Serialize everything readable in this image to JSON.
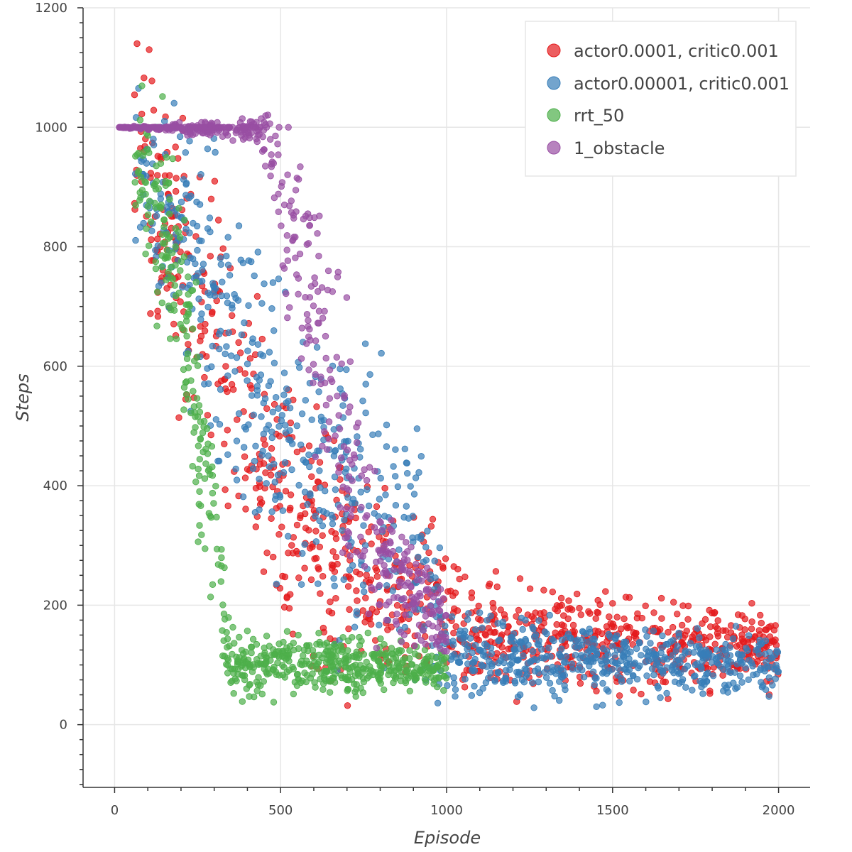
{
  "chart_data": {
    "type": "scatter",
    "xlabel": "Episode",
    "ylabel": "Steps",
    "xlim": [
      -95,
      2095
    ],
    "ylim": [
      -105,
      1200
    ],
    "x_ticks": [
      0,
      500,
      1000,
      1500,
      2000
    ],
    "x_tick_labels": [
      "0",
      "500",
      "1000",
      "1500",
      "2000"
    ],
    "y_ticks": [
      0,
      200,
      400,
      600,
      800,
      1000,
      1200
    ],
    "y_tick_labels": [
      "0",
      "200",
      "400",
      "600",
      "800",
      "1000",
      "1200"
    ],
    "grid": true,
    "legend_position": "top-right",
    "series": [
      {
        "name": "actor0.0001, critic0.001",
        "color": "#e41a1c",
        "trend": [
          [
            60,
            1000
          ],
          [
            120,
            900
          ],
          [
            200,
            780
          ],
          [
            300,
            650
          ],
          [
            400,
            500
          ],
          [
            500,
            380
          ],
          [
            600,
            320
          ],
          [
            700,
            260
          ],
          [
            800,
            220
          ],
          [
            900,
            210
          ],
          [
            1000,
            190
          ],
          [
            1100,
            150
          ],
          [
            1300,
            140
          ],
          [
            1500,
            135
          ],
          [
            1700,
            130
          ],
          [
            2000,
            125
          ]
        ],
        "spread": [
          [
            60,
            150
          ],
          [
            300,
            200
          ],
          [
            600,
            180
          ],
          [
            900,
            120
          ],
          [
            1100,
            70
          ],
          [
            2000,
            55
          ]
        ],
        "n": 1000,
        "seed": 11
      },
      {
        "name": "actor0.00001, critic0.001",
        "color": "#377eb8",
        "trend": [
          [
            60,
            950
          ],
          [
            200,
            850
          ],
          [
            300,
            700
          ],
          [
            400,
            600
          ],
          [
            500,
            500
          ],
          [
            600,
            450
          ],
          [
            700,
            400
          ],
          [
            800,
            350
          ],
          [
            900,
            300
          ],
          [
            1000,
            130
          ],
          [
            1100,
            115
          ],
          [
            1300,
            110
          ],
          [
            1500,
            108
          ],
          [
            1700,
            105
          ],
          [
            2000,
            100
          ]
        ],
        "spread": [
          [
            60,
            150
          ],
          [
            400,
            220
          ],
          [
            800,
            220
          ],
          [
            950,
            150
          ],
          [
            1000,
            60
          ],
          [
            2000,
            40
          ]
        ],
        "n": 1000,
        "seed": 23
      },
      {
        "name": "rrt_50",
        "color": "#4daf4a",
        "trend": [
          [
            60,
            960
          ],
          [
            150,
            850
          ],
          [
            200,
            700
          ],
          [
            250,
            520
          ],
          [
            300,
            350
          ],
          [
            330,
            150
          ],
          [
            350,
            110
          ],
          [
            500,
            100
          ],
          [
            700,
            100
          ],
          [
            1000,
            95
          ]
        ],
        "spread": [
          [
            60,
            120
          ],
          [
            200,
            150
          ],
          [
            300,
            170
          ],
          [
            340,
            50
          ],
          [
            1000,
            30
          ]
        ],
        "n": 650,
        "seed": 37
      },
      {
        "name": "1_obstacle",
        "color": "#984ea3",
        "trend": [
          [
            10,
            1000
          ],
          [
            440,
            1000
          ],
          [
            500,
            900
          ],
          [
            600,
            700
          ],
          [
            700,
            500
          ],
          [
            750,
            350
          ],
          [
            800,
            270
          ],
          [
            900,
            220
          ],
          [
            980,
            180
          ],
          [
            1000,
            150
          ]
        ],
        "spread": [
          [
            10,
            0
          ],
          [
            440,
            20
          ],
          [
            520,
            170
          ],
          [
            700,
            200
          ],
          [
            800,
            90
          ],
          [
            1000,
            45
          ]
        ],
        "n": 560,
        "seed": 53
      }
    ]
  }
}
